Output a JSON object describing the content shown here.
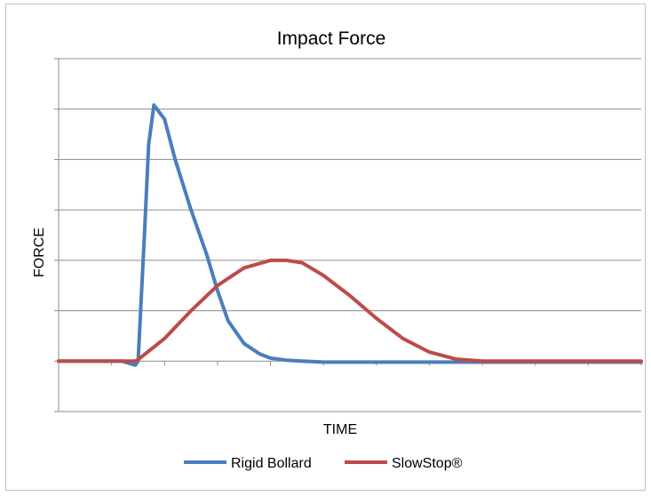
{
  "chart_data": {
    "type": "line",
    "title": "Impact Force",
    "xlabel": "TIME",
    "ylabel": "FORCE",
    "xlim": [
      0,
      11
    ],
    "ylim": [
      -1,
      6
    ],
    "x_ticks_count": 11,
    "grid": "horizontal",
    "legend_placement": "bottom",
    "series": [
      {
        "name": "Rigid Bollard",
        "color": "#4a7ebb",
        "x": [
          0,
          1.2,
          1.45,
          1.5,
          1.62,
          1.7,
          1.8,
          2.0,
          2.2,
          2.5,
          2.8,
          3.0,
          3.2,
          3.5,
          3.8,
          4.0,
          4.3,
          4.6,
          5.0,
          11.0
        ],
        "y": [
          0,
          0,
          -0.08,
          0.0,
          2.5,
          4.3,
          5.08,
          4.8,
          4.0,
          3.0,
          2.1,
          1.4,
          0.8,
          0.35,
          0.14,
          0.06,
          0.02,
          0.0,
          -0.02,
          -0.02
        ]
      },
      {
        "name": "SlowStop®",
        "color": "#be4b48",
        "x": [
          0,
          1.45,
          1.5,
          2.0,
          2.5,
          3.0,
          3.5,
          4.0,
          4.3,
          4.6,
          5.0,
          5.5,
          6.0,
          6.5,
          7.0,
          7.5,
          8.0,
          8.5,
          9.0,
          11.0
        ],
        "y": [
          0,
          0,
          0.03,
          0.45,
          1.0,
          1.5,
          1.85,
          2.0,
          2.0,
          1.95,
          1.7,
          1.3,
          0.85,
          0.45,
          0.18,
          0.04,
          0.0,
          0.0,
          0.0,
          0.0
        ]
      }
    ]
  }
}
